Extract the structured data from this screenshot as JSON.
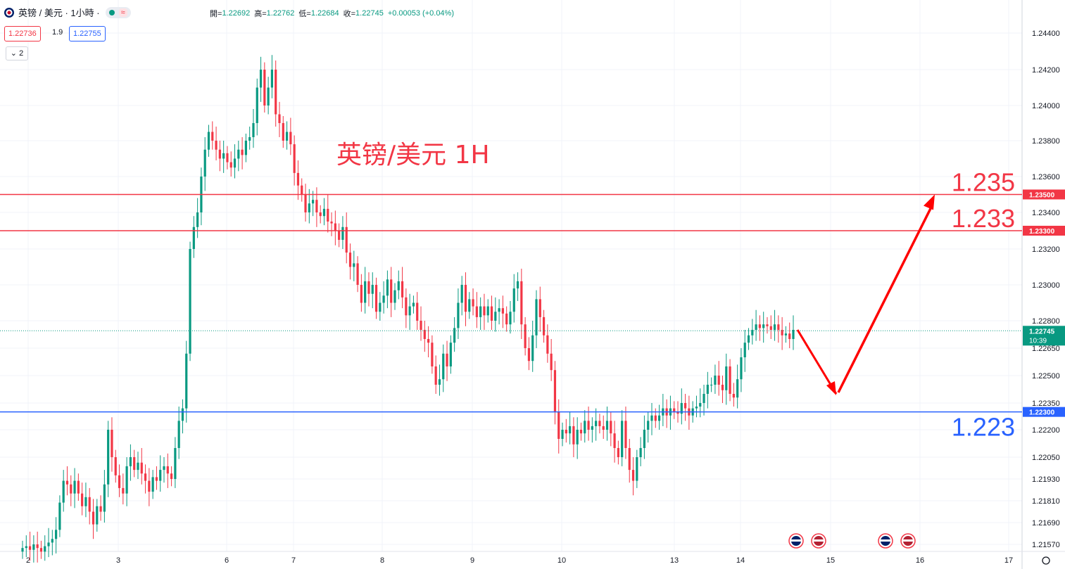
{
  "header": {
    "symbol": "英镑 / 美元 · 1小時 ·",
    "wave_label": "≈",
    "ohlc": {
      "open_label": "開=",
      "open": "1.22692",
      "high_label": "高=",
      "high": "1.22762",
      "low_label": "低=",
      "low": "1.22684",
      "close_label": "收=",
      "close": "1.22745",
      "change": "+0.00053 (+0.04%)"
    },
    "bid": "1.22736",
    "spread": "1.9",
    "ask": "1.22755",
    "collapse_label": "⌄ 2"
  },
  "colors": {
    "up": "#089981",
    "down": "#f23645",
    "resistance": "#f23645",
    "support": "#2962ff",
    "arrow": "#ff0000",
    "annotation": "#f23645"
  },
  "chart_data": {
    "type": "candlestick",
    "title": "英镑/美元 1H",
    "y_ticks": [
      "1.24400",
      "1.24200",
      "1.24000",
      "1.23800",
      "1.23600",
      "1.23400",
      "1.23200",
      "1.23000",
      "1.22800",
      "1.22650",
      "1.22500",
      "1.22350",
      "1.22200",
      "1.22050",
      "1.21930",
      "1.21810",
      "1.21690",
      "1.21570"
    ],
    "x_ticks": [
      "2",
      "3",
      "6",
      "7",
      "8",
      "9",
      "10",
      "13",
      "14",
      "15",
      "16",
      "17"
    ],
    "horizontal_lines": [
      {
        "price": 1.235,
        "tag": "1.23500",
        "label": "1.235",
        "kind": "resistance"
      },
      {
        "price": 1.233,
        "tag": "1.23300",
        "label": "1.233",
        "kind": "resistance"
      },
      {
        "price": 1.223,
        "tag": "1.22300",
        "label": "1.223",
        "kind": "support"
      }
    ],
    "current_price": {
      "value": "1.22745",
      "countdown": "10:39"
    },
    "projection": [
      {
        "date": "14 (last bar)",
        "price": 1.2275
      },
      {
        "date": "15",
        "price": 1.224
      },
      {
        "date": "16",
        "price": 1.235
      }
    ],
    "events": [
      {
        "date": "14.6",
        "flags": [
          "uk",
          "us"
        ]
      },
      {
        "date": "15.6",
        "flags": [
          "uk",
          "us"
        ]
      }
    ],
    "closes": [
      1.2155,
      1.2156,
      1.2154,
      1.2157,
      1.2155,
      1.2153,
      1.2156,
      1.2158,
      1.216,
      1.2165,
      1.218,
      1.2192,
      1.219,
      1.2185,
      1.2192,
      1.2185,
      1.2178,
      1.2183,
      1.2175,
      1.2168,
      1.2178,
      1.2175,
      1.219,
      1.222,
      1.2205,
      1.2195,
      1.2188,
      1.2185,
      1.22,
      1.2205,
      1.2198,
      1.2202,
      1.2196,
      1.2192,
      1.2186,
      1.2194,
      1.2192,
      1.2198,
      1.22,
      1.2196,
      1.2193,
      1.221,
      1.2225,
      1.2232,
      1.2262,
      1.232,
      1.2332,
      1.234,
      1.236,
      1.2375,
      1.2385,
      1.238,
      1.2375,
      1.237,
      1.2373,
      1.2368,
      1.2365,
      1.237,
      1.2375,
      1.2372,
      1.238,
      1.2382,
      1.239,
      1.241,
      1.242,
      1.24,
      1.241,
      1.242,
      1.2395,
      1.239,
      1.238,
      1.2385,
      1.2378,
      1.2362,
      1.2355,
      1.235,
      1.234,
      1.2345,
      1.2347,
      1.234,
      1.2338,
      1.2342,
      1.2335,
      1.2334,
      1.233,
      1.2325,
      1.2332,
      1.2318,
      1.231,
      1.2312,
      1.23,
      1.229,
      1.2302,
      1.2295,
      1.23,
      1.2285,
      1.229,
      1.2294,
      1.2303,
      1.229,
      1.2297,
      1.2302,
      1.2293,
      1.2283,
      1.2288,
      1.229,
      1.228,
      1.2275,
      1.227,
      1.2268,
      1.2255,
      1.2245,
      1.2248,
      1.2262,
      1.2255,
      1.2268,
      1.2276,
      1.229,
      1.23,
      1.2285,
      1.2292,
      1.2288,
      1.2282,
      1.2288,
      1.2283,
      1.2288,
      1.228,
      1.2285,
      1.2287,
      1.2284,
      1.2278,
      1.2285,
      1.2298,
      1.2302,
      1.2278,
      1.2265,
      1.2258,
      1.2272,
      1.2292,
      1.2282,
      1.2272,
      1.2262,
      1.2253,
      1.223,
      1.2215,
      1.222,
      1.2218,
      1.2222,
      1.2212,
      1.222,
      1.2218,
      1.2225,
      1.222,
      1.2222,
      1.2225,
      1.2222,
      1.222,
      1.2225,
      1.2218,
      1.221,
      1.2205,
      1.2225,
      1.221,
      1.2198,
      1.2192,
      1.2205,
      1.221,
      1.222,
      1.2225,
      1.2228,
      1.2225,
      1.2228,
      1.2232,
      1.2228,
      1.2232,
      1.223,
      1.2229,
      1.2235,
      1.2232,
      1.2228,
      1.2232,
      1.2233,
      1.2235,
      1.224,
      1.2245,
      1.2245,
      1.225,
      1.2245,
      1.2242,
      1.2255,
      1.224,
      1.2238,
      1.2248,
      1.226,
      1.2268,
      1.2272,
      1.2275,
      1.2278,
      1.2276,
      1.2278,
      1.2277,
      1.2275,
      1.2278,
      1.2275,
      1.2272,
      1.2273,
      1.227,
      1.2275
    ]
  }
}
